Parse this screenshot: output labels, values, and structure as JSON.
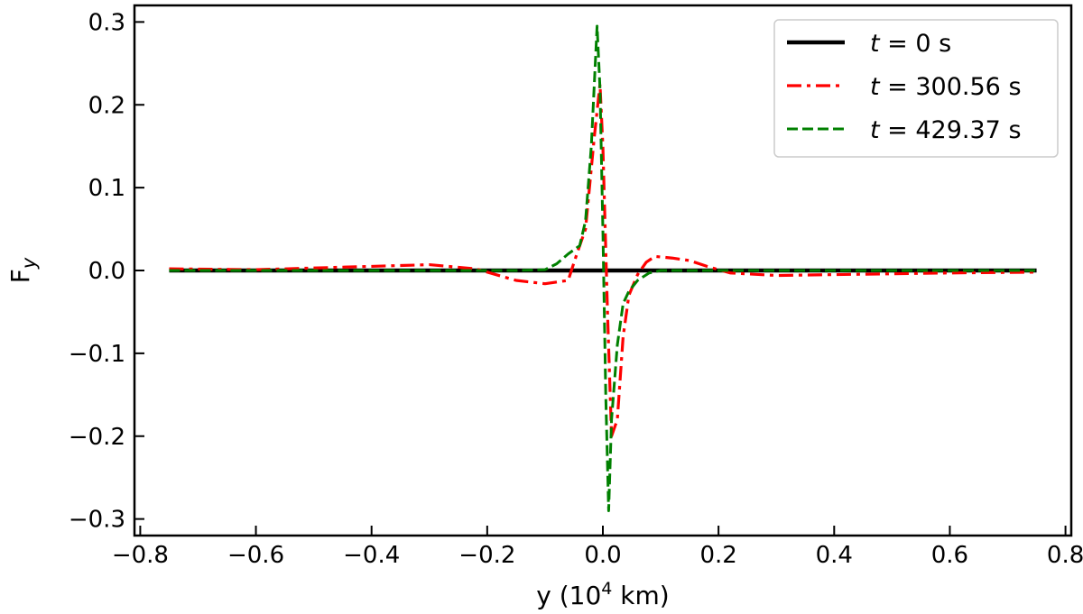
{
  "chart_data": {
    "type": "line",
    "title": "",
    "xlabel": "y (10⁴ km)",
    "ylabel": "F",
    "ylabel_subscript": "y",
    "xlim": [
      -0.81,
      0.81
    ],
    "ylim": [
      -0.32,
      0.32
    ],
    "xticks": [
      -0.8,
      -0.6,
      -0.4,
      -0.2,
      0.0,
      0.2,
      0.4,
      0.6,
      0.8
    ],
    "xtick_labels": [
      "−0.8",
      "−0.6",
      "−0.4",
      "−0.2",
      "0.0",
      "0.2",
      "0.4",
      "0.6",
      "0.8"
    ],
    "yticks": [
      -0.3,
      -0.2,
      -0.1,
      0.0,
      0.1,
      0.2,
      0.3
    ],
    "ytick_labels": [
      "−0.3",
      "−0.2",
      "−0.1",
      "0.0",
      "0.1",
      "0.2",
      "0.3"
    ],
    "grid": false,
    "legend_position": "top-right",
    "series": [
      {
        "name": "t = 0 s",
        "legend_var": "t",
        "legend_rest": " = 0 s",
        "color": "#000000",
        "style": "solid",
        "x": [
          -0.75,
          0.75
        ],
        "y": [
          0.0,
          0.0
        ]
      },
      {
        "name": "t = 300.56 s",
        "legend_var": "t",
        "legend_rest": " = 300.56 s",
        "color": "#ff0000",
        "style": "dashdot",
        "x": [
          -0.75,
          -0.6,
          -0.45,
          -0.3,
          -0.22,
          -0.2,
          -0.15,
          -0.1,
          -0.06,
          -0.045,
          -0.03,
          -0.015,
          -0.005,
          0.0,
          0.008,
          0.015,
          0.025,
          0.035,
          0.045,
          0.06,
          0.075,
          0.09,
          0.12,
          0.15,
          0.18,
          0.22,
          0.3,
          0.4,
          0.5,
          0.6,
          0.75
        ],
        "y": [
          0.002,
          0.001,
          0.004,
          0.007,
          0.002,
          -0.002,
          -0.012,
          -0.016,
          -0.012,
          0.02,
          0.05,
          0.16,
          0.225,
          0.15,
          -0.05,
          -0.2,
          -0.18,
          -0.08,
          -0.03,
          -0.005,
          0.01,
          0.017,
          0.015,
          0.012,
          0.005,
          -0.003,
          -0.006,
          -0.005,
          -0.004,
          -0.003,
          -0.002
        ]
      },
      {
        "name": "t = 429.37 s",
        "legend_var": "t",
        "legend_rest": " = 429.37 s",
        "color": "#008000",
        "style": "dashed",
        "x": [
          -0.75,
          -0.5,
          -0.3,
          -0.2,
          -0.15,
          -0.1,
          -0.08,
          -0.06,
          -0.04,
          -0.03,
          -0.02,
          -0.01,
          -0.005,
          0.0,
          0.005,
          0.01,
          0.015,
          0.025,
          0.035,
          0.045,
          0.06,
          0.08,
          0.1,
          0.2,
          0.4,
          0.6,
          0.75
        ],
        "y": [
          0.0,
          0.0,
          0.0,
          0.0,
          0.0,
          0.001,
          0.008,
          0.02,
          0.03,
          0.06,
          0.15,
          0.295,
          0.22,
          0.05,
          -0.15,
          -0.29,
          -0.18,
          -0.09,
          -0.04,
          -0.025,
          -0.012,
          -0.003,
          0.0,
          0.0,
          0.0,
          0.0,
          0.0
        ]
      }
    ]
  }
}
